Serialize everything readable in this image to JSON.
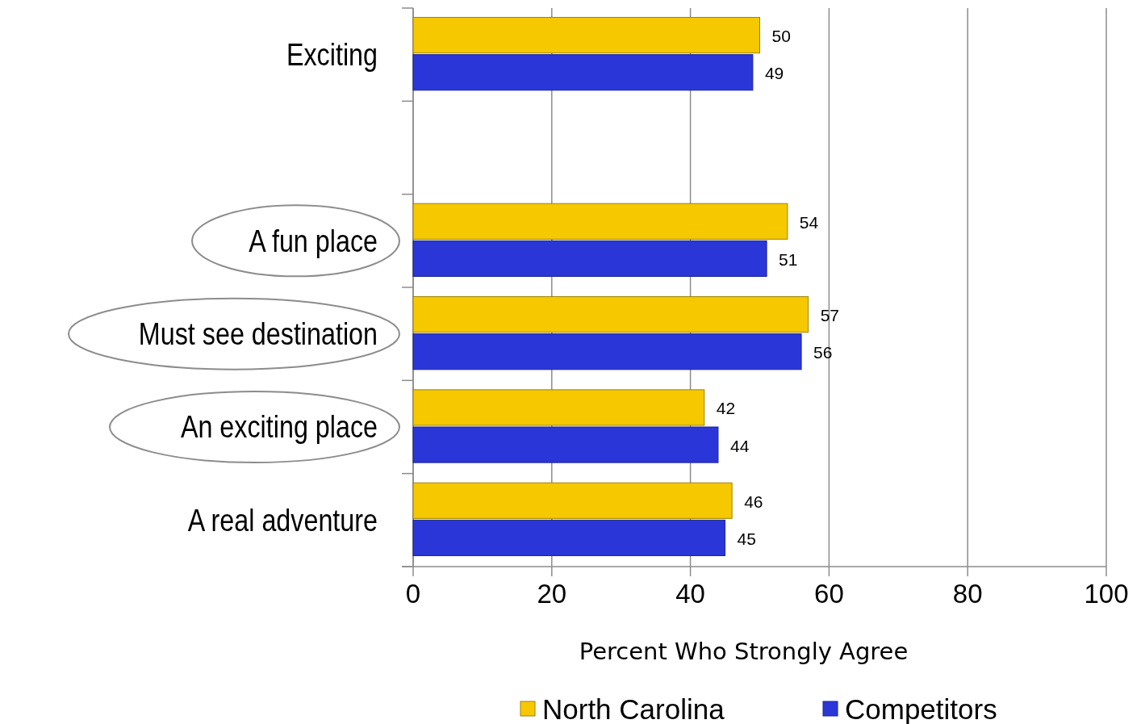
{
  "chart_data": {
    "type": "bar",
    "orientation": "horizontal",
    "xlabel": "Percent Who Strongly Agree",
    "categories": [
      "Exciting",
      null,
      "A fun place",
      "Must see destination",
      "An exciting place",
      "A real adventure"
    ],
    "series": [
      {
        "name": "North Carolina",
        "color": "#f5c800",
        "values": [
          50,
          null,
          54,
          57,
          42,
          46
        ]
      },
      {
        "name": "Competitors",
        "color": "#2b36d9",
        "values": [
          49,
          null,
          51,
          56,
          44,
          45
        ]
      }
    ],
    "xlim": [
      0,
      100
    ],
    "xticks": [
      0,
      20,
      40,
      60,
      80,
      100
    ],
    "grid": "x",
    "data_labels": true,
    "legend": "bottom"
  }
}
